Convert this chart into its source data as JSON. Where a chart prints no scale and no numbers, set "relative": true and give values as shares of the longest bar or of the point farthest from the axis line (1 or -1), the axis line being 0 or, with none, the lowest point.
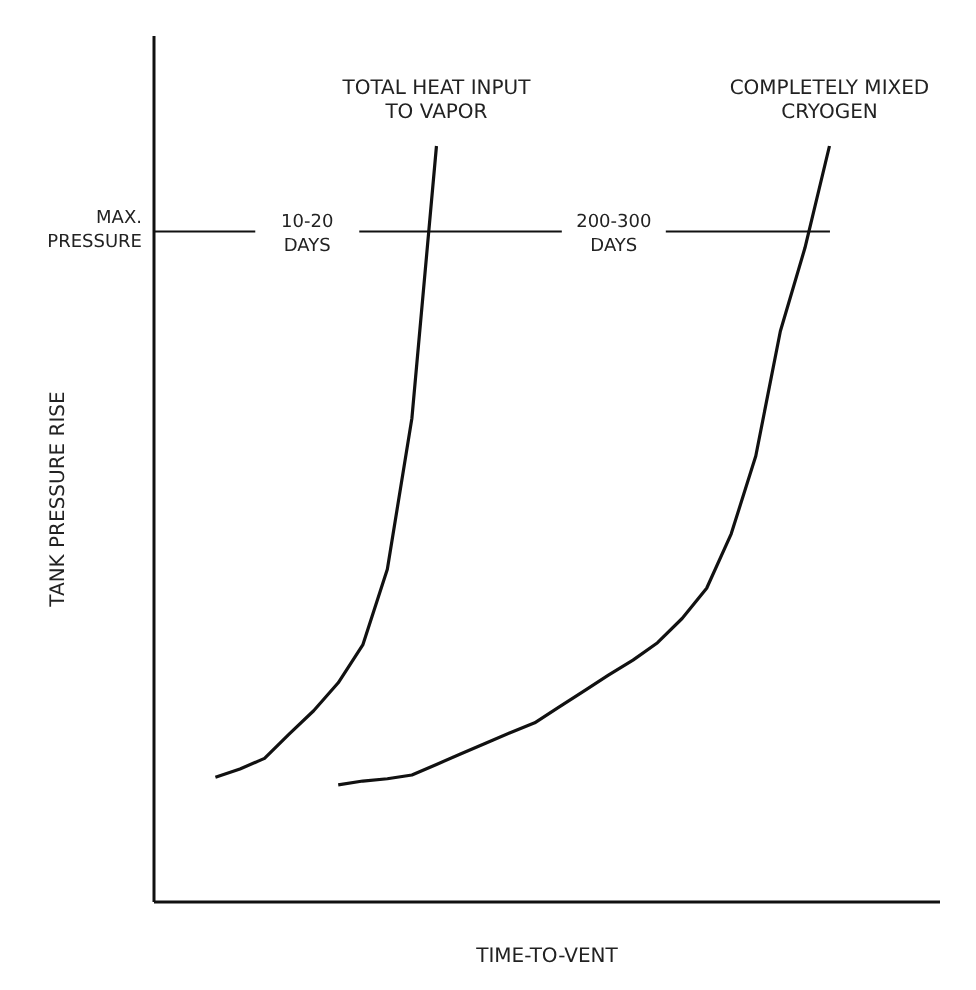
{
  "chart_data": {
    "type": "line",
    "relative": true,
    "xlabel": "TIME-TO-VENT",
    "ylabel": "TANK PRESSURE RISE",
    "marker": "none",
    "line_style": "solid",
    "categories": [
      null,
      null,
      null,
      null,
      null,
      null,
      null,
      null,
      null,
      null,
      null,
      null,
      null,
      null,
      null,
      null,
      null,
      null,
      null,
      null,
      null,
      null,
      null,
      null,
      null,
      null,
      null,
      null,
      null,
      null,
      null,
      null
    ],
    "series": [
      {
        "name": "TOTAL HEAT INPUT TO VAPOR",
        "color": "#111111",
        "values": [
          null,
          null,
          0.165,
          0.176,
          0.19,
          0.222,
          0.253,
          0.29,
          0.34,
          0.44,
          0.64,
          1,
          null,
          null,
          null,
          null,
          null,
          null,
          null,
          null,
          null,
          null,
          null,
          null,
          null,
          null,
          null,
          null,
          null,
          null,
          null,
          null
        ]
      },
      {
        "name": "COMPLETELY MIXED CRYOGEN",
        "color": "#111111",
        "values": [
          null,
          null,
          null,
          null,
          null,
          null,
          null,
          0.155,
          0.16,
          0.163,
          0.168,
          0.182,
          0.196,
          0.21,
          0.224,
          0.237,
          0.258,
          0.279,
          0.3,
          0.32,
          0.343,
          0.375,
          0.415,
          0.487,
          0.59,
          0.755,
          0.865,
          1,
          null,
          null,
          null,
          null
        ]
      }
    ],
    "ref_lines": [
      {
        "axis": "y",
        "value": 0.887,
        "label": "MAX. PRESSURE",
        "color": "#111111"
      }
    ],
    "annotations": [
      "10-20 DAYS",
      "200-300 DAYS"
    ]
  }
}
